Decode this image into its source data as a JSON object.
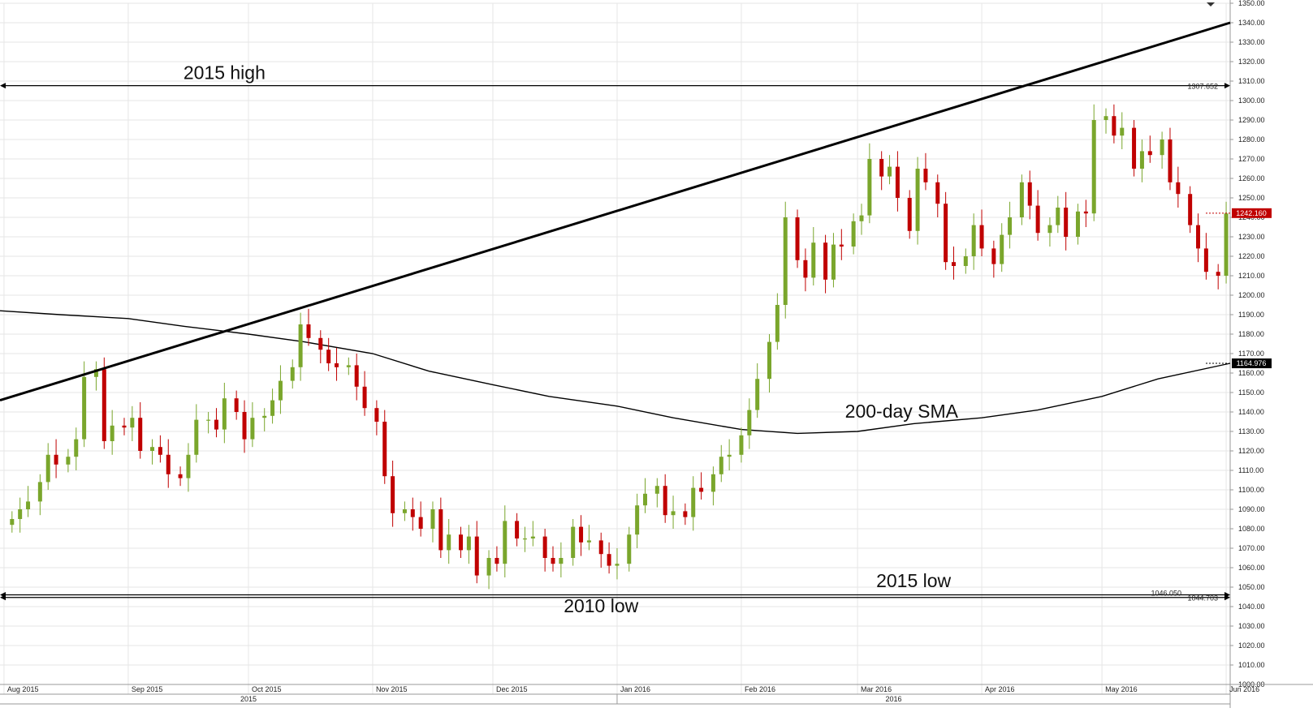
{
  "chart_data": {
    "type": "candlestick",
    "title": "",
    "xlabel": "",
    "ylabel": "",
    "ylim": [
      1000,
      1350
    ],
    "y_ticks": [
      1000,
      1010,
      1020,
      1030,
      1040,
      1050,
      1060,
      1070,
      1080,
      1090,
      1100,
      1110,
      1120,
      1130,
      1140,
      1150,
      1160,
      1170,
      1180,
      1190,
      1200,
      1210,
      1220,
      1230,
      1240,
      1250,
      1260,
      1270,
      1280,
      1290,
      1300,
      1310,
      1320,
      1330,
      1340,
      1350
    ],
    "x_range": [
      "2015-07-31",
      "2016-06-02"
    ],
    "month_labels": [
      {
        "label": "Aug 2015",
        "date": "2015-08-01"
      },
      {
        "label": "Sep 2015",
        "date": "2015-09-01"
      },
      {
        "label": "Oct 2015",
        "date": "2015-10-01"
      },
      {
        "label": "Nov 2015",
        "date": "2015-11-01"
      },
      {
        "label": "Dec 2015",
        "date": "2015-12-01"
      },
      {
        "label": "Jan 2016",
        "date": "2016-01-01"
      },
      {
        "label": "Feb 2016",
        "date": "2016-02-01"
      },
      {
        "label": "Mar 2016",
        "date": "2016-03-01"
      },
      {
        "label": "Apr 2016",
        "date": "2016-04-01"
      },
      {
        "label": "May 2016",
        "date": "2016-05-01"
      },
      {
        "label": "Jun 2016",
        "date": "2016-06-01"
      }
    ],
    "year_labels": [
      {
        "label": "2015",
        "date": "2015-10-01"
      },
      {
        "label": "2016",
        "date": "2016-03-10"
      }
    ],
    "year_divider": "2016-01-01",
    "colors": {
      "up": "#7aa62c",
      "down": "#c00000",
      "line": "#000000",
      "grid": "#e6e6e6"
    },
    "series": [
      {
        "date": "2015-08-03",
        "close": 1085
      },
      {
        "date": "2015-08-05",
        "close": 1090
      },
      {
        "date": "2015-08-07",
        "close": 1094
      },
      {
        "date": "2015-08-10",
        "close": 1104
      },
      {
        "date": "2015-08-12",
        "close": 1118
      },
      {
        "date": "2015-08-14",
        "close": 1113
      },
      {
        "date": "2015-08-17",
        "close": 1117
      },
      {
        "date": "2015-08-19",
        "close": 1126
      },
      {
        "date": "2015-08-21",
        "close": 1158
      },
      {
        "date": "2015-08-24",
        "close": 1162
      },
      {
        "date": "2015-08-26",
        "close": 1125
      },
      {
        "date": "2015-08-28",
        "close": 1133
      },
      {
        "date": "2015-08-31",
        "close": 1132
      },
      {
        "date": "2015-09-02",
        "close": 1137
      },
      {
        "date": "2015-09-04",
        "close": 1120
      },
      {
        "date": "2015-09-07",
        "close": 1122
      },
      {
        "date": "2015-09-09",
        "close": 1118
      },
      {
        "date": "2015-09-11",
        "close": 1108
      },
      {
        "date": "2015-09-14",
        "close": 1106
      },
      {
        "date": "2015-09-16",
        "close": 1118
      },
      {
        "date": "2015-09-18",
        "close": 1136
      },
      {
        "date": "2015-09-21",
        "close": 1136
      },
      {
        "date": "2015-09-23",
        "close": 1131
      },
      {
        "date": "2015-09-25",
        "close": 1147
      },
      {
        "date": "2015-09-28",
        "close": 1140
      },
      {
        "date": "2015-09-30",
        "close": 1126
      },
      {
        "date": "2015-10-02",
        "close": 1137
      },
      {
        "date": "2015-10-05",
        "close": 1138
      },
      {
        "date": "2015-10-07",
        "close": 1146
      },
      {
        "date": "2015-10-09",
        "close": 1156
      },
      {
        "date": "2015-10-12",
        "close": 1163
      },
      {
        "date": "2015-10-14",
        "close": 1185
      },
      {
        "date": "2015-10-16",
        "close": 1178
      },
      {
        "date": "2015-10-19",
        "close": 1172
      },
      {
        "date": "2015-10-21",
        "close": 1165
      },
      {
        "date": "2015-10-23",
        "close": 1163
      },
      {
        "date": "2015-10-26",
        "close": 1164
      },
      {
        "date": "2015-10-28",
        "close": 1153
      },
      {
        "date": "2015-10-30",
        "close": 1142
      },
      {
        "date": "2015-11-02",
        "close": 1135
      },
      {
        "date": "2015-11-04",
        "close": 1107
      },
      {
        "date": "2015-11-06",
        "close": 1088
      },
      {
        "date": "2015-11-09",
        "close": 1090
      },
      {
        "date": "2015-11-11",
        "close": 1086
      },
      {
        "date": "2015-11-13",
        "close": 1080
      },
      {
        "date": "2015-11-16",
        "close": 1090
      },
      {
        "date": "2015-11-18",
        "close": 1069
      },
      {
        "date": "2015-11-20",
        "close": 1077
      },
      {
        "date": "2015-11-23",
        "close": 1069
      },
      {
        "date": "2015-11-25",
        "close": 1076
      },
      {
        "date": "2015-11-27",
        "close": 1056
      },
      {
        "date": "2015-11-30",
        "close": 1065
      },
      {
        "date": "2015-12-02",
        "close": 1062
      },
      {
        "date": "2015-12-04",
        "close": 1084
      },
      {
        "date": "2015-12-07",
        "close": 1075
      },
      {
        "date": "2015-12-09",
        "close": 1075
      },
      {
        "date": "2015-12-11",
        "close": 1076
      },
      {
        "date": "2015-12-14",
        "close": 1065
      },
      {
        "date": "2015-12-16",
        "close": 1062
      },
      {
        "date": "2015-12-18",
        "close": 1065
      },
      {
        "date": "2015-12-21",
        "close": 1081
      },
      {
        "date": "2015-12-23",
        "close": 1073
      },
      {
        "date": "2015-12-25",
        "close": 1074
      },
      {
        "date": "2015-12-28",
        "close": 1067
      },
      {
        "date": "2015-12-30",
        "close": 1061
      },
      {
        "date": "2016-01-01",
        "close": 1062
      },
      {
        "date": "2016-01-04",
        "close": 1077
      },
      {
        "date": "2016-01-06",
        "close": 1092
      },
      {
        "date": "2016-01-08",
        "close": 1098
      },
      {
        "date": "2016-01-11",
        "close": 1102
      },
      {
        "date": "2016-01-13",
        "close": 1087
      },
      {
        "date": "2016-01-15",
        "close": 1089
      },
      {
        "date": "2016-01-18",
        "close": 1086
      },
      {
        "date": "2016-01-20",
        "close": 1101
      },
      {
        "date": "2016-01-22",
        "close": 1099
      },
      {
        "date": "2016-01-25",
        "close": 1108
      },
      {
        "date": "2016-01-27",
        "close": 1117
      },
      {
        "date": "2016-01-29",
        "close": 1118
      },
      {
        "date": "2016-02-01",
        "close": 1128
      },
      {
        "date": "2016-02-03",
        "close": 1141
      },
      {
        "date": "2016-02-05",
        "close": 1157
      },
      {
        "date": "2016-02-08",
        "close": 1176
      },
      {
        "date": "2016-02-10",
        "close": 1195
      },
      {
        "date": "2016-02-12",
        "close": 1240
      },
      {
        "date": "2016-02-15",
        "close": 1218
      },
      {
        "date": "2016-02-17",
        "close": 1209
      },
      {
        "date": "2016-02-19",
        "close": 1227
      },
      {
        "date": "2016-02-22",
        "close": 1208
      },
      {
        "date": "2016-02-24",
        "close": 1226
      },
      {
        "date": "2016-02-26",
        "close": 1225
      },
      {
        "date": "2016-02-29",
        "close": 1238
      },
      {
        "date": "2016-03-02",
        "close": 1241
      },
      {
        "date": "2016-03-04",
        "close": 1270
      },
      {
        "date": "2016-03-07",
        "close": 1261
      },
      {
        "date": "2016-03-09",
        "close": 1266
      },
      {
        "date": "2016-03-11",
        "close": 1250
      },
      {
        "date": "2016-03-14",
        "close": 1233
      },
      {
        "date": "2016-03-16",
        "close": 1265
      },
      {
        "date": "2016-03-18",
        "close": 1258
      },
      {
        "date": "2016-03-21",
        "close": 1247
      },
      {
        "date": "2016-03-23",
        "close": 1217
      },
      {
        "date": "2016-03-25",
        "close": 1215
      },
      {
        "date": "2016-03-28",
        "close": 1220
      },
      {
        "date": "2016-03-30",
        "close": 1236
      },
      {
        "date": "2016-04-01",
        "close": 1224
      },
      {
        "date": "2016-04-04",
        "close": 1216
      },
      {
        "date": "2016-04-06",
        "close": 1231
      },
      {
        "date": "2016-04-08",
        "close": 1240
      },
      {
        "date": "2016-04-11",
        "close": 1258
      },
      {
        "date": "2016-04-13",
        "close": 1246
      },
      {
        "date": "2016-04-15",
        "close": 1232
      },
      {
        "date": "2016-04-18",
        "close": 1236
      },
      {
        "date": "2016-04-20",
        "close": 1245
      },
      {
        "date": "2016-04-22",
        "close": 1230
      },
      {
        "date": "2016-04-25",
        "close": 1243
      },
      {
        "date": "2016-04-27",
        "close": 1242
      },
      {
        "date": "2016-04-29",
        "close": 1290
      },
      {
        "date": "2016-05-02",
        "close": 1292
      },
      {
        "date": "2016-05-04",
        "close": 1282
      },
      {
        "date": "2016-05-06",
        "close": 1286
      },
      {
        "date": "2016-05-09",
        "close": 1265
      },
      {
        "date": "2016-05-11",
        "close": 1274
      },
      {
        "date": "2016-05-13",
        "close": 1272
      },
      {
        "date": "2016-05-16",
        "close": 1280
      },
      {
        "date": "2016-05-18",
        "close": 1258
      },
      {
        "date": "2016-05-20",
        "close": 1252
      },
      {
        "date": "2016-05-23",
        "close": 1236
      },
      {
        "date": "2016-05-25",
        "close": 1224
      },
      {
        "date": "2016-05-27",
        "close": 1212
      },
      {
        "date": "2016-05-30",
        "close": 1210
      },
      {
        "date": "2016-06-01",
        "close": 1242
      }
    ],
    "sma_200": [
      {
        "date": "2015-07-31",
        "value": 1192
      },
      {
        "date": "2015-08-15",
        "value": 1190
      },
      {
        "date": "2015-09-01",
        "value": 1188
      },
      {
        "date": "2015-09-15",
        "value": 1184
      },
      {
        "date": "2015-10-01",
        "value": 1180
      },
      {
        "date": "2015-10-15",
        "value": 1176
      },
      {
        "date": "2015-11-01",
        "value": 1170
      },
      {
        "date": "2015-11-15",
        "value": 1161
      },
      {
        "date": "2015-12-01",
        "value": 1154
      },
      {
        "date": "2015-12-15",
        "value": 1148
      },
      {
        "date": "2016-01-01",
        "value": 1143
      },
      {
        "date": "2016-01-15",
        "value": 1137
      },
      {
        "date": "2016-02-01",
        "value": 1131
      },
      {
        "date": "2016-02-15",
        "value": 1129
      },
      {
        "date": "2016-03-01",
        "value": 1130
      },
      {
        "date": "2016-03-15",
        "value": 1134
      },
      {
        "date": "2016-04-01",
        "value": 1137
      },
      {
        "date": "2016-04-15",
        "value": 1141
      },
      {
        "date": "2016-05-01",
        "value": 1148
      },
      {
        "date": "2016-05-15",
        "value": 1157
      },
      {
        "date": "2016-06-02",
        "value": 1165
      }
    ],
    "trendline": [
      {
        "date": "2015-07-31",
        "value": 1146
      },
      {
        "date": "2016-06-02",
        "value": 1340
      }
    ],
    "horizontal_lines": [
      {
        "name": "2015 high",
        "value": 1307.652,
        "label": "1307.652"
      },
      {
        "name": "2015 low",
        "value": 1046.05,
        "label": "1046.050"
      },
      {
        "name": "2010 low",
        "value": 1044.703,
        "label": "1044.703"
      }
    ],
    "last_price": {
      "value": 1242.16,
      "label": "1242.160"
    },
    "sma_last": {
      "value": 1164.976,
      "label": "1164.976"
    },
    "annotations": [
      {
        "text": "2015 high",
        "date": "2015-09-25",
        "value": 1311
      },
      {
        "text": "200-day SMA",
        "date": "2016-03-12",
        "value": 1137
      },
      {
        "text": "2015 low",
        "date": "2016-03-15",
        "value": 1050
      },
      {
        "text": "2010 low",
        "date": "2015-12-28",
        "value": 1037
      }
    ]
  }
}
